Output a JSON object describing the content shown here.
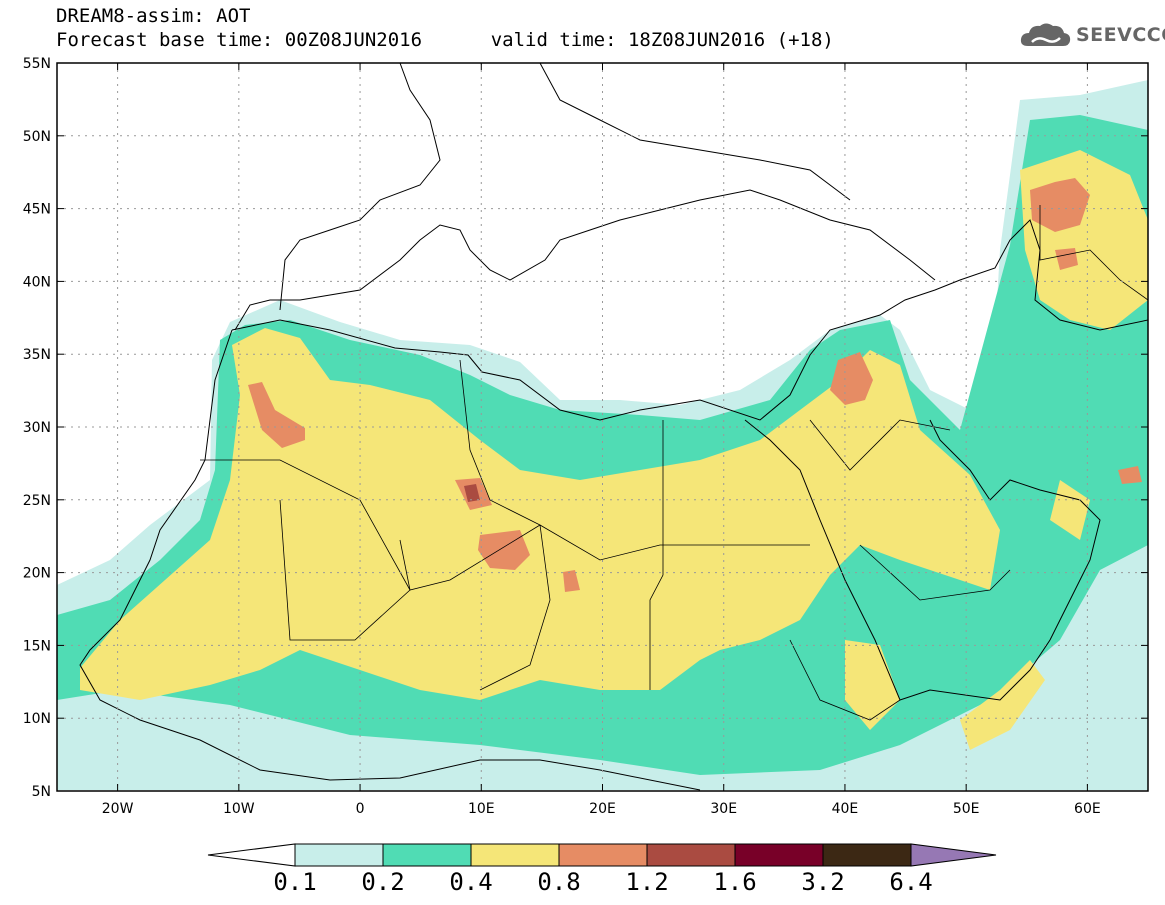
{
  "header": {
    "title": "DREAM8-assim: AOT",
    "base_time_label": "Forecast base time: 00Z08JUN2016",
    "valid_time_label": "valid time: 18Z08JUN2016 (+18)"
  },
  "logo": {
    "text": "SEEVCCC",
    "icon": "cloud-icon"
  },
  "map": {
    "lat_ticks": [
      "55N",
      "50N",
      "45N",
      "40N",
      "35N",
      "30N",
      "25N",
      "20N",
      "15N",
      "10N",
      "5N"
    ],
    "lon_ticks": [
      "20W",
      "10W",
      "0",
      "10E",
      "20E",
      "30E",
      "40E",
      "50E",
      "60E"
    ],
    "lat_range": [
      5,
      55
    ],
    "lon_range": [
      -25,
      65
    ],
    "grid": true
  },
  "colorbar": {
    "labels": [
      "0.1",
      "0.2",
      "0.4",
      "0.8",
      "1.2",
      "1.6",
      "3.2",
      "6.4"
    ],
    "colors": [
      "#c8eeea",
      "#50dcb4",
      "#f5e678",
      "#e68c64",
      "#aa4b41",
      "#780028",
      "#3c2814",
      "#9678b4"
    ]
  },
  "colors": {
    "low": "#c8eeea",
    "mid": "#50dcb4",
    "yellow": "#f5e678",
    "orange": "#e68c64",
    "brown": "#aa4b41"
  }
}
